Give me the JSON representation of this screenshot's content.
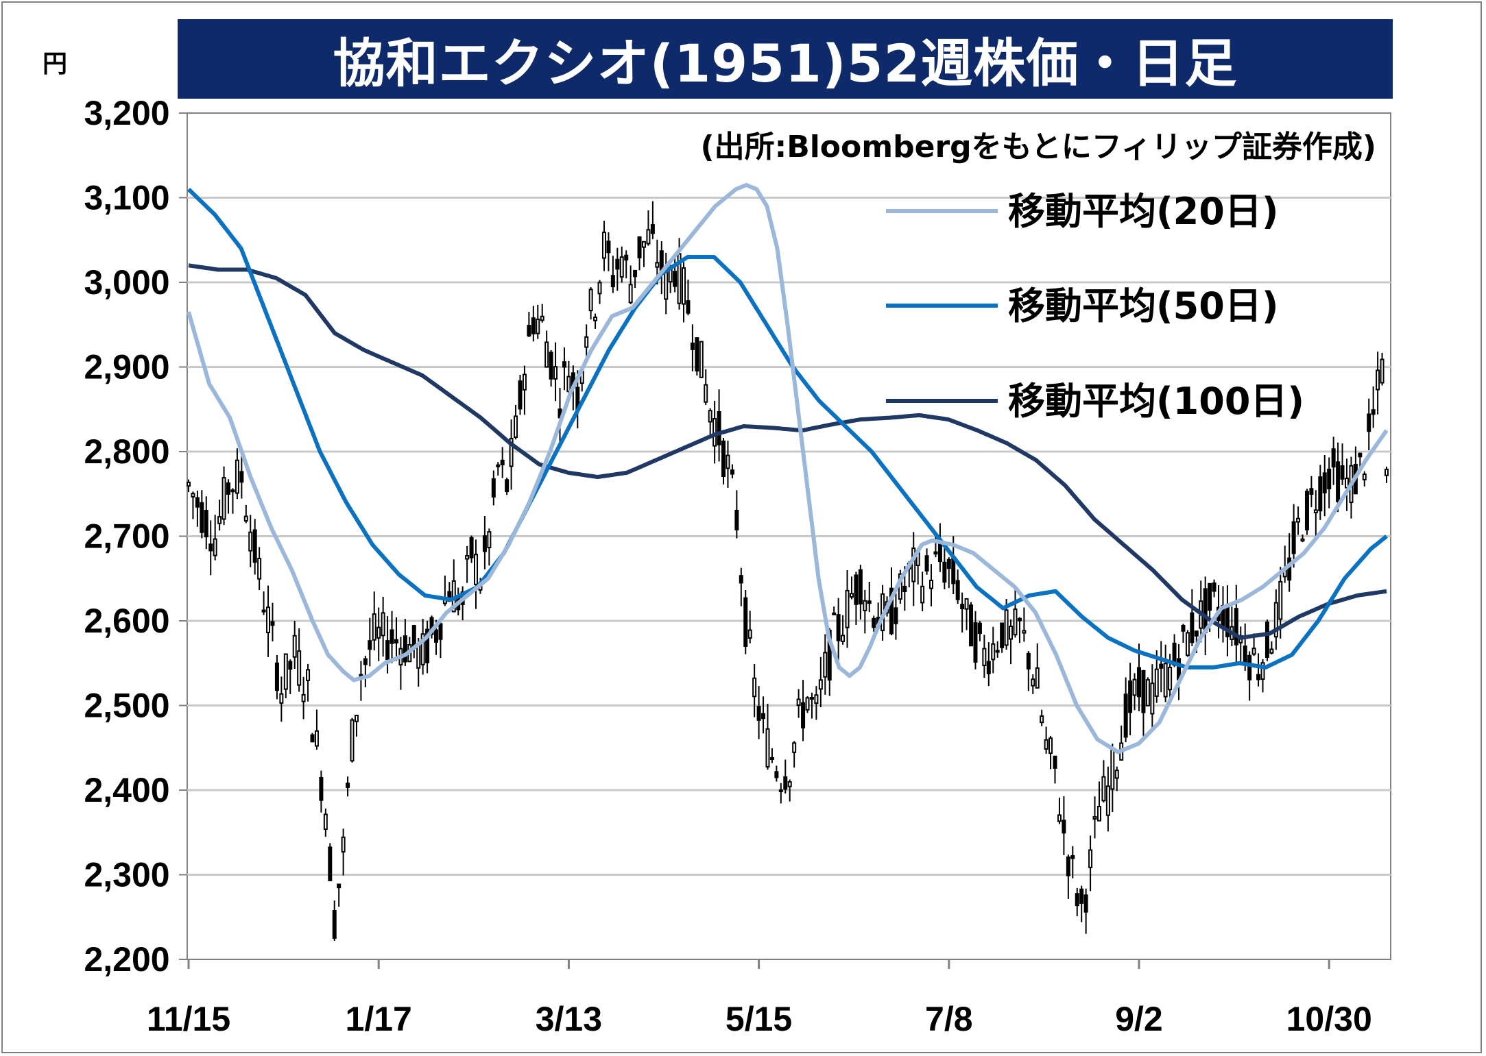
{
  "title": "協和エクシオ(1951)52週株価・日足",
  "unit": "円",
  "source": "(出所:Bloombergをもとにフィリップ証券作成)",
  "colors": {
    "title_bg": "#0f2a6b",
    "ma20": "#9bb7da",
    "ma50": "#0a72c0",
    "ma100": "#1f3864",
    "candle": "#000000",
    "grid": "#c8c8c8"
  },
  "chart_data": {
    "type": "candlestick",
    "ylim": [
      2200,
      3200
    ],
    "y_ticks": [
      "3,200",
      "3,100",
      "3,000",
      "2,900",
      "2,800",
      "2,700",
      "2,600",
      "2,500",
      "2,400",
      "2,300",
      "2,200"
    ],
    "y_tick_values": [
      3200,
      3100,
      3000,
      2900,
      2800,
      2700,
      2600,
      2500,
      2400,
      2300,
      2200
    ],
    "x_ticks": [
      "11/15",
      "1/17",
      "3/13",
      "5/15",
      "7/8",
      "9/2",
      "10/30"
    ],
    "x_tick_index": [
      0,
      43,
      86,
      129,
      172,
      215,
      258
    ],
    "n_days": 272,
    "grid": true,
    "legend_position": "top-right",
    "series": [
      {
        "name": "移動平均(20日)",
        "key": "ma20"
      },
      {
        "name": "移動平均(50日)",
        "key": "ma50"
      },
      {
        "name": "移動平均(100日)",
        "key": "ma100"
      }
    ],
    "close_anchors": [
      [
        0,
        2760
      ],
      [
        3,
        2730
      ],
      [
        6,
        2700
      ],
      [
        9,
        2760
      ],
      [
        12,
        2770
      ],
      [
        15,
        2680
      ],
      [
        18,
        2600
      ],
      [
        21,
        2520
      ],
      [
        24,
        2560
      ],
      [
        27,
        2520
      ],
      [
        29,
        2450
      ],
      [
        31,
        2380
      ],
      [
        33,
        2250
      ],
      [
        35,
        2330
      ],
      [
        37,
        2460
      ],
      [
        39,
        2540
      ],
      [
        42,
        2580
      ],
      [
        46,
        2580
      ],
      [
        50,
        2570
      ],
      [
        53,
        2560
      ],
      [
        56,
        2590
      ],
      [
        59,
        2640
      ],
      [
        62,
        2620
      ],
      [
        64,
        2680
      ],
      [
        66,
        2650
      ],
      [
        68,
        2700
      ],
      [
        70,
        2780
      ],
      [
        72,
        2760
      ],
      [
        74,
        2820
      ],
      [
        76,
        2900
      ],
      [
        78,
        2960
      ],
      [
        80,
        2950
      ],
      [
        82,
        2910
      ],
      [
        84,
        2870
      ],
      [
        86,
        2900
      ],
      [
        88,
        2870
      ],
      [
        90,
        2950
      ],
      [
        92,
        2980
      ],
      [
        94,
        3040
      ],
      [
        96,
        3010
      ],
      [
        98,
        3030
      ],
      [
        100,
        3000
      ],
      [
        102,
        3040
      ],
      [
        104,
        3050
      ],
      [
        106,
        3030
      ],
      [
        108,
        3000
      ],
      [
        110,
        3020
      ],
      [
        112,
        2990
      ],
      [
        114,
        2950
      ],
      [
        116,
        2900
      ],
      [
        118,
        2850
      ],
      [
        120,
        2820
      ],
      [
        122,
        2780
      ],
      [
        124,
        2720
      ],
      [
        126,
        2600
      ],
      [
        128,
        2520
      ],
      [
        130,
        2470
      ],
      [
        132,
        2440
      ],
      [
        134,
        2420
      ],
      [
        136,
        2430
      ],
      [
        138,
        2480
      ],
      [
        140,
        2510
      ],
      [
        142,
        2490
      ],
      [
        144,
        2540
      ],
      [
        146,
        2580
      ],
      [
        148,
        2600
      ],
      [
        150,
        2630
      ],
      [
        152,
        2650
      ],
      [
        154,
        2620
      ],
      [
        156,
        2610
      ],
      [
        158,
        2600
      ],
      [
        160,
        2620
      ],
      [
        162,
        2640
      ],
      [
        164,
        2660
      ],
      [
        166,
        2650
      ],
      [
        168,
        2660
      ],
      [
        170,
        2670
      ],
      [
        172,
        2660
      ],
      [
        174,
        2640
      ],
      [
        176,
        2600
      ],
      [
        178,
        2580
      ],
      [
        180,
        2560
      ],
      [
        182,
        2570
      ],
      [
        184,
        2590
      ],
      [
        186,
        2580
      ],
      [
        188,
        2590
      ],
      [
        190,
        2560
      ],
      [
        192,
        2520
      ],
      [
        194,
        2450
      ],
      [
        196,
        2420
      ],
      [
        198,
        2350
      ],
      [
        200,
        2300
      ],
      [
        202,
        2260
      ],
      [
        204,
        2310
      ],
      [
        206,
        2380
      ],
      [
        208,
        2400
      ],
      [
        210,
        2440
      ],
      [
        212,
        2490
      ],
      [
        214,
        2510
      ],
      [
        216,
        2520
      ],
      [
        218,
        2510
      ],
      [
        220,
        2530
      ],
      [
        222,
        2540
      ],
      [
        224,
        2560
      ],
      [
        226,
        2580
      ],
      [
        228,
        2600
      ],
      [
        230,
        2610
      ],
      [
        232,
        2620
      ],
      [
        234,
        2610
      ],
      [
        236,
        2600
      ],
      [
        238,
        2580
      ],
      [
        240,
        2560
      ],
      [
        242,
        2550
      ],
      [
        244,
        2570
      ],
      [
        246,
        2600
      ],
      [
        248,
        2640
      ],
      [
        250,
        2690
      ],
      [
        252,
        2720
      ],
      [
        254,
        2740
      ],
      [
        256,
        2760
      ],
      [
        258,
        2780
      ],
      [
        260,
        2770
      ],
      [
        262,
        2760
      ],
      [
        264,
        2770
      ],
      [
        266,
        2790
      ],
      [
        268,
        2840
      ],
      [
        270,
        2900
      ],
      [
        271,
        2760
      ]
    ],
    "ma20_anchors": [
      [
        0,
        2965
      ],
      [
        4,
        2880
      ],
      [
        8,
        2840
      ],
      [
        12,
        2770
      ],
      [
        16,
        2710
      ],
      [
        20,
        2660
      ],
      [
        24,
        2600
      ],
      [
        27,
        2560
      ],
      [
        30,
        2540
      ],
      [
        32,
        2530
      ],
      [
        35,
        2535
      ],
      [
        38,
        2550
      ],
      [
        42,
        2560
      ],
      [
        46,
        2580
      ],
      [
        50,
        2610
      ],
      [
        54,
        2630
      ],
      [
        58,
        2650
      ],
      [
        62,
        2690
      ],
      [
        66,
        2740
      ],
      [
        70,
        2800
      ],
      [
        74,
        2870
      ],
      [
        78,
        2920
      ],
      [
        82,
        2960
      ],
      [
        86,
        2970
      ],
      [
        90,
        3000
      ],
      [
        94,
        3030
      ],
      [
        98,
        3060
      ],
      [
        102,
        3090
      ],
      [
        106,
        3110
      ],
      [
        108,
        3115
      ],
      [
        110,
        3110
      ],
      [
        112,
        3090
      ],
      [
        114,
        3040
      ],
      [
        116,
        2950
      ],
      [
        118,
        2850
      ],
      [
        120,
        2750
      ],
      [
        122,
        2650
      ],
      [
        124,
        2580
      ],
      [
        126,
        2545
      ],
      [
        128,
        2535
      ],
      [
        130,
        2545
      ],
      [
        132,
        2570
      ],
      [
        134,
        2600
      ],
      [
        136,
        2625
      ],
      [
        138,
        2650
      ],
      [
        140,
        2670
      ],
      [
        142,
        2690
      ],
      [
        144,
        2695
      ],
      [
        148,
        2690
      ],
      [
        152,
        2680
      ],
      [
        156,
        2660
      ],
      [
        160,
        2640
      ],
      [
        164,
        2610
      ],
      [
        168,
        2560
      ],
      [
        172,
        2500
      ],
      [
        176,
        2460
      ],
      [
        180,
        2445
      ],
      [
        184,
        2455
      ],
      [
        188,
        2480
      ],
      [
        192,
        2530
      ],
      [
        196,
        2580
      ],
      [
        200,
        2615
      ],
      [
        204,
        2625
      ],
      [
        208,
        2640
      ],
      [
        212,
        2660
      ],
      [
        216,
        2680
      ],
      [
        220,
        2710
      ],
      [
        224,
        2750
      ],
      [
        228,
        2790
      ],
      [
        232,
        2825
      ]
    ],
    "ma50_anchors": [
      [
        0,
        3110
      ],
      [
        5,
        3080
      ],
      [
        10,
        3040
      ],
      [
        15,
        2960
      ],
      [
        20,
        2880
      ],
      [
        25,
        2800
      ],
      [
        30,
        2740
      ],
      [
        35,
        2690
      ],
      [
        40,
        2655
      ],
      [
        45,
        2630
      ],
      [
        50,
        2625
      ],
      [
        55,
        2640
      ],
      [
        60,
        2680
      ],
      [
        65,
        2740
      ],
      [
        70,
        2800
      ],
      [
        75,
        2860
      ],
      [
        80,
        2920
      ],
      [
        85,
        2970
      ],
      [
        90,
        3010
      ],
      [
        95,
        3030
      ],
      [
        100,
        3030
      ],
      [
        105,
        3000
      ],
      [
        110,
        2950
      ],
      [
        115,
        2900
      ],
      [
        120,
        2860
      ],
      [
        125,
        2830
      ],
      [
        130,
        2800
      ],
      [
        135,
        2760
      ],
      [
        140,
        2720
      ],
      [
        145,
        2680
      ],
      [
        150,
        2640
      ],
      [
        155,
        2615
      ],
      [
        160,
        2630
      ],
      [
        165,
        2635
      ],
      [
        170,
        2605
      ],
      [
        175,
        2580
      ],
      [
        180,
        2565
      ],
      [
        185,
        2555
      ],
      [
        190,
        2545
      ],
      [
        195,
        2545
      ],
      [
        200,
        2550
      ],
      [
        205,
        2545
      ],
      [
        210,
        2560
      ],
      [
        215,
        2600
      ],
      [
        220,
        2650
      ],
      [
        225,
        2685
      ],
      [
        228,
        2700
      ]
    ],
    "ma100_anchors": [
      [
        0,
        3020
      ],
      [
        6,
        3015
      ],
      [
        12,
        3015
      ],
      [
        18,
        3005
      ],
      [
        24,
        2985
      ],
      [
        30,
        2940
      ],
      [
        36,
        2920
      ],
      [
        42,
        2905
      ],
      [
        48,
        2890
      ],
      [
        54,
        2865
      ],
      [
        60,
        2840
      ],
      [
        66,
        2810
      ],
      [
        72,
        2785
      ],
      [
        78,
        2775
      ],
      [
        84,
        2770
      ],
      [
        90,
        2775
      ],
      [
        96,
        2790
      ],
      [
        102,
        2805
      ],
      [
        108,
        2820
      ],
      [
        114,
        2830
      ],
      [
        120,
        2828
      ],
      [
        126,
        2825
      ],
      [
        132,
        2832
      ],
      [
        138,
        2838
      ],
      [
        144,
        2840
      ],
      [
        150,
        2843
      ],
      [
        156,
        2838
      ],
      [
        162,
        2825
      ],
      [
        168,
        2810
      ],
      [
        174,
        2790
      ],
      [
        180,
        2760
      ],
      [
        186,
        2720
      ],
      [
        192,
        2690
      ],
      [
        198,
        2660
      ],
      [
        204,
        2625
      ],
      [
        210,
        2600
      ],
      [
        216,
        2580
      ],
      [
        222,
        2585
      ],
      [
        228,
        2605
      ],
      [
        234,
        2620
      ],
      [
        240,
        2630
      ],
      [
        246,
        2635
      ]
    ]
  }
}
